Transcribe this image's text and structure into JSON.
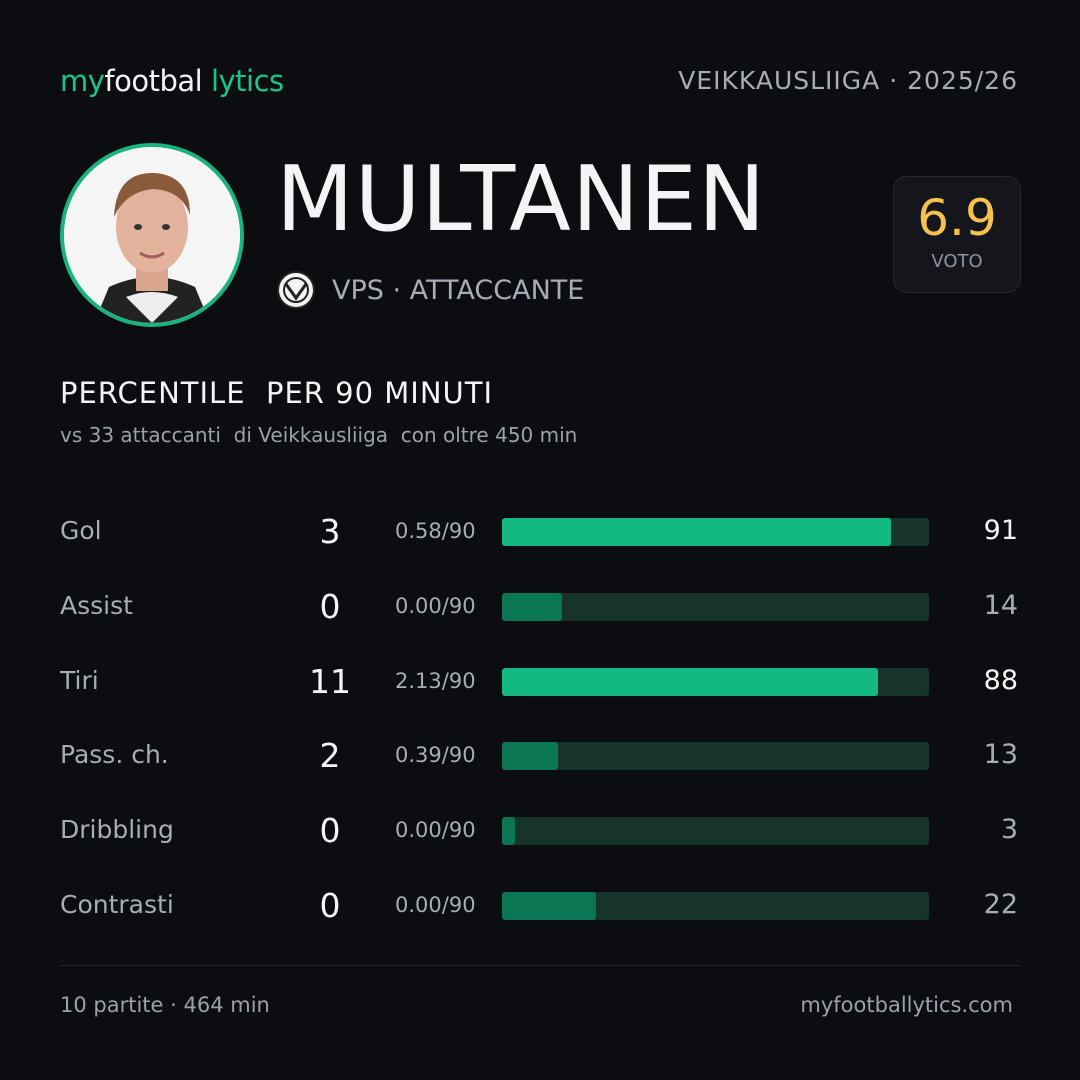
{
  "header": {
    "brand": [
      "my",
      "footbal",
      "lytics"
    ],
    "league": "VEIKKAUSLIIGA",
    "season": "· 2025/26"
  },
  "player": {
    "name": "MULTANEN",
    "team_role": "VPS · ATTACCANTE",
    "rating": 6.9,
    "rating_label": "VOTO"
  },
  "section": {
    "title": "PERCENTILE  PER 90 MINUTI",
    "subtitle": "vs 33 attaccanti  di Veikkausliiga  con oltre 450 min"
  },
  "stats": [
    {
      "label": "Gol",
      "total": 3,
      "per90": "0.58/90",
      "percentile": 91,
      "color": "#13b981"
    },
    {
      "label": "Assist",
      "total": 0,
      "per90": "0.00/90",
      "percentile": 14,
      "color": "#0b7653"
    },
    {
      "label": "Tiri",
      "total": 11,
      "per90": "2.13/90",
      "percentile": 88,
      "color": "#13b981"
    },
    {
      "label": "Pass. ch.",
      "total": 2,
      "per90": "0.39/90",
      "percentile": 13,
      "color": "#0b7653"
    },
    {
      "label": "Dribbling",
      "total": 0,
      "per90": "0.00/90",
      "percentile": 3,
      "color": "#0b7653"
    },
    {
      "label": "Contrasti",
      "total": 0,
      "per90": "0.00/90",
      "percentile": 22,
      "color": "#0b7653"
    }
  ],
  "footer": {
    "left": "10 partite · 464 min",
    "right": "myfootballytics.com"
  }
}
